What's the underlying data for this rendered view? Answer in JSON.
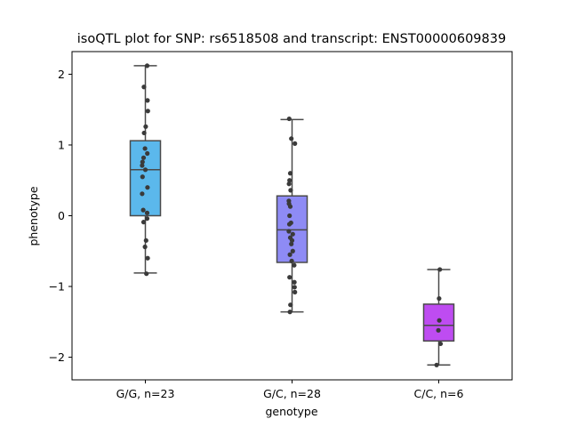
{
  "chart_data": {
    "type": "box",
    "title": "isoQTL plot for SNP: rs6518508 and transcript: ENST00000609839",
    "xlabel": "genotype",
    "ylabel": "phenotype",
    "ylim": [
      -2.32,
      2.32
    ],
    "yticks": [
      -2,
      -1,
      0,
      1,
      2
    ],
    "categories": [
      "G/G, n=23",
      "G/C, n=28",
      "C/C, n=6"
    ],
    "colors": [
      "#5BB8EC",
      "#8E8BF5",
      "#BE4CF1"
    ],
    "boxes": [
      {
        "category": "G/G, n=23",
        "whisker_low": -0.81,
        "q1": 0.0,
        "median": 0.65,
        "q3": 1.06,
        "whisker_high": 2.12
      },
      {
        "category": "G/C, n=28",
        "whisker_low": -1.36,
        "q1": -0.66,
        "median": -0.2,
        "q3": 0.28,
        "whisker_high": 1.36
      },
      {
        "category": "C/C, n=6",
        "whisker_low": -2.11,
        "q1": -1.77,
        "median": -1.55,
        "q3": -1.25,
        "whisker_high": -0.76
      }
    ],
    "points": [
      [
        [
          0.1,
          2.12
        ],
        [
          -0.08,
          1.82
        ],
        [
          0.12,
          1.63
        ],
        [
          0.14,
          1.48
        ],
        [
          0.02,
          1.26
        ],
        [
          -0.07,
          1.17
        ],
        [
          -0.02,
          0.95
        ],
        [
          0.11,
          0.88
        ],
        [
          -0.1,
          0.82
        ],
        [
          -0.16,
          0.76
        ],
        [
          -0.18,
          0.71
        ],
        [
          0.0,
          0.65
        ],
        [
          -0.16,
          0.55
        ],
        [
          0.12,
          0.4
        ],
        [
          -0.18,
          0.31
        ],
        [
          -0.12,
          0.08
        ],
        [
          0.1,
          0.04
        ],
        [
          0.1,
          -0.04
        ],
        [
          -0.1,
          -0.09
        ],
        [
          0.04,
          -0.35
        ],
        [
          -0.02,
          -0.44
        ],
        [
          0.13,
          -0.6
        ],
        [
          0.06,
          -0.82
        ]
      ],
      [
        [
          -0.16,
          1.37
        ],
        [
          -0.04,
          1.09
        ],
        [
          0.16,
          1.02
        ],
        [
          -0.1,
          0.6
        ],
        [
          -0.14,
          0.5
        ],
        [
          -0.17,
          0.45
        ],
        [
          -0.08,
          0.36
        ],
        [
          -0.18,
          0.21
        ],
        [
          -0.17,
          0.17
        ],
        [
          -0.1,
          0.13
        ],
        [
          -0.14,
          0.0
        ],
        [
          -0.15,
          -0.12
        ],
        [
          -0.18,
          -0.22
        ],
        [
          0.04,
          -0.26
        ],
        [
          -0.1,
          -0.31
        ],
        [
          -0.04,
          -0.4
        ],
        [
          0.04,
          -0.5
        ],
        [
          -0.12,
          -0.55
        ],
        [
          -0.02,
          -0.64
        ],
        [
          0.12,
          -0.7
        ],
        [
          -0.14,
          -0.87
        ],
        [
          0.13,
          -0.94
        ],
        [
          0.14,
          -1.01
        ],
        [
          0.16,
          -1.08
        ],
        [
          -0.09,
          -1.26
        ],
        [
          -0.12,
          -1.36
        ],
        [
          0.0,
          -0.35
        ],
        [
          -0.06,
          -0.1
        ]
      ],
      [
        [
          0.06,
          -0.76
        ],
        [
          0.02,
          -1.17
        ],
        [
          0.03,
          -1.48
        ],
        [
          -0.02,
          -1.62
        ],
        [
          0.1,
          -1.81
        ],
        [
          -0.12,
          -2.11
        ]
      ]
    ]
  }
}
